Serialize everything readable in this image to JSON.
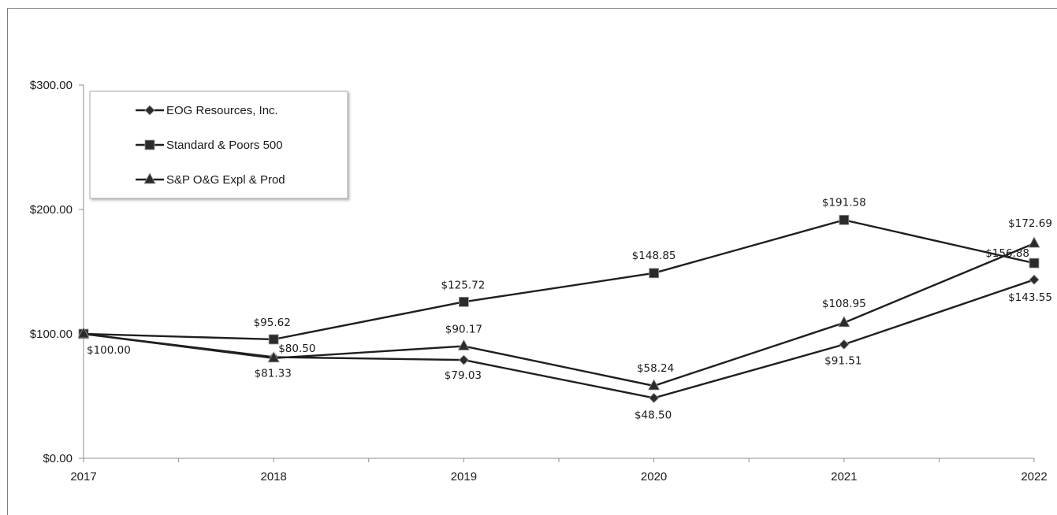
{
  "chart_data": {
    "type": "line",
    "categories": [
      "2017",
      "2018",
      "2019",
      "2020",
      "2021",
      "2022"
    ],
    "ylim": [
      0,
      300
    ],
    "yticks": [
      "$0.00",
      "$100.00",
      "$200.00",
      "$300.00"
    ],
    "grid": false,
    "legend_position": "top-left",
    "series": [
      {
        "name": "EOG Resources, Inc.",
        "marker": "diamond",
        "values": [
          100.0,
          81.33,
          79.03,
          48.5,
          91.51,
          143.55
        ],
        "labels": [
          "$100.00",
          "$81.33",
          "$79.03",
          "$48.50",
          "$91.51",
          "$143.55"
        ]
      },
      {
        "name": "Standard & Poors 500",
        "marker": "square",
        "values": [
          100.0,
          95.62,
          125.72,
          148.85,
          191.58,
          156.88
        ],
        "labels": [
          "",
          "$95.62",
          "$125.72",
          "$148.85",
          "$191.58",
          "$156.88"
        ]
      },
      {
        "name": "S&P O&G Expl & Prod",
        "marker": "triangle",
        "values": [
          100.0,
          80.5,
          90.17,
          58.24,
          108.95,
          172.69
        ],
        "labels": [
          "",
          "$80.50",
          "$90.17",
          "$58.24",
          "$108.95",
          "$172.69"
        ]
      }
    ],
    "colors": {
      "line": "#1f1f1f",
      "marker": "#2b2b2b",
      "axis": "#8c8c8c",
      "legend_border": "#a6a6a6"
    }
  }
}
